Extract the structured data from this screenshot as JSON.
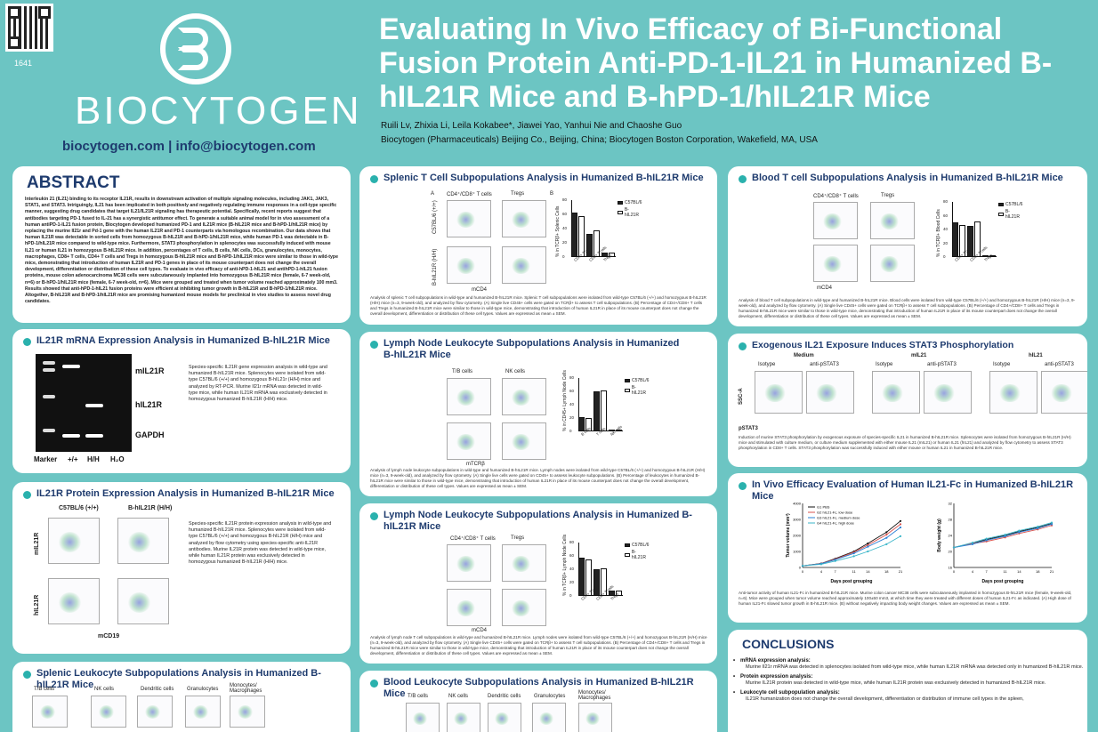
{
  "header": {
    "poster_id": "1641",
    "logo_text": "BIOCYTOGEN",
    "contact": "biocytogen.com  |  info@biocytogen.com",
    "title": "Evaluating In Vivo Efficacy of Bi-Functional Fusion Protein Anti-PD-1-IL21 in Humanized B-hIL21R Mice and B-hPD-1/hIL21R Mice",
    "authors": "Ruili Lv, Zhixia Li, Leila Kokabee*, Jiawei Yao, Yanhui Nie and Chaoshe Guo",
    "affiliation": "Biocytogen (Pharmaceuticals) Beijing Co., Beijing, China; Biocytogen Boston Corporation, Wakefield, MA, USA"
  },
  "abstract": {
    "title": "ABSTRACT",
    "text": "Interleukin 21 (IL21) binding to its receptor IL21R, results in downstream activation of multiple signaling molecules, including JAK1, JAK3, STAT1, and STAT3. Intriguingly, IL21 has been implicated in both positively and negatively regulating immune responses in a cell-type specific manner, suggesting drug candidates that target IL21/IL21R signaling has therapeutic potential. Specifically, recent reports suggest that antibodies targeting PD-1 fused to IL-21 has a synergistic antitumor effect. To generate a suitable animal model for in vivo assessment of a human antiPD-1-IL21 fusion protein, Biocytogen developed humanized PD-1 and IL21R mice (B-hIL21R mice and B-hPD-1/hIL21R mice) by replacing the murine Il21r and Pd-1 gene with the human IL21R and PD-1 counterparts via homologous recombination. Our data shows that human IL21R was detectable in sorted cells from homozygous B-hIL21R and B-hPD-1/hIL21R mice, while human PD-1 was detectable in B-hPD-1/hIL21R mice compared to wild-type mice. Furthermore, STAT3 phosphorylation in splenocytes was successfully induced with mouse IL21 or human IL21 in homozygous B-hIL21R mice. In addition, percentages of T cells, B cells, NK cells, DCs, granulocytes, monocytes, macrophages, CD8+ T cells, CD4+ T cells and Tregs in homozygous B-hIL21R mice and B-hPD-1/hIL21R mice were similar to those in wild-type mice, demonstrating that introduction of human IL21R and PD-1 genes in place of its mouse counterpart does not change the overall development, differentiation or distribution of these cell types. To evaluate in vivo efficacy of anti-hPD-1-hIL21 and antihPD-1-hIL21 fusion proteins, mouse colon adenocarcinoma MC38 cells were subcutaneously implanted into homozygous B-hIL21R mice (female, 6-7 week-old, n=6) or B-hPD-1/hIL21R mice (female, 6-7 week-old, n=6). Mice were grouped and treated when tumor volume reached approximately 100 mm3. Results showed that anti-hPD-1-hIL21 fusion proteins were efficient at inhibiting tumor growth in B-hIL21R and B-hPD-1/hIL21R mice. Altogether, B-hIL21R and B-hPD-1/hIL21R mice are promising humanized mouse models for preclinical in vivo studies to assess novel drug candidates."
  },
  "mrna": {
    "title": "IL21R mRNA Expression Analysis in Humanized B-hIL21R Mice",
    "gel_labels": [
      "mIL21R",
      "hIL21R",
      "GAPDH"
    ],
    "lane_labels": [
      "Marker",
      "+/+",
      "H/H",
      "H₂O"
    ],
    "text": "Species-specific IL21R gene expression analysis in wild-type and humanized B-hIL21R mice. Splenocytes were isolated from wild-type C57BL/6 (+/+) and homozygous B-hIL21r (H/H) mice and analyzed by RT-PCR. Murine Il21r mRNA was detected in wild-type mice, while human IL21R mRNA was exclusively detected in homozygous humanized B-hIL21R (H/H) mice."
  },
  "protein": {
    "title": "IL21R Protein Expression Analysis in Humanized B-hIL21R Mice",
    "col_labels": [
      "C57BL/6 (+/+)",
      "B-hIL21R (H/H)"
    ],
    "row_labels": [
      "mIL21R",
      "hIL21R"
    ],
    "x_label": "mCD19",
    "text": "Species-specific IL21R protein expression analysis in wild-type and humanized B-hIL21R mice. Splenocytes were isolated from wild-type C57BL/6 (+/+) and homozygous B-hIL21R (H/H) mice and analyzed by flow cytometry using species-specific anti-IL21R antibodies. Murine IL21R protein was detected in wild-type mice, while human IL21R protein was exclusively detected in homozygous humanized B-hIL21R (H/H) mice."
  },
  "splenic_leuko": {
    "title": "Splenic Leukocyte Subpopulations Analysis in Humanized B-hIL21R Mice",
    "gate_labels": [
      "T/B cells",
      "NK cells",
      "Dendritic cells",
      "Granulocytes",
      "Monocytes/ Macrophages"
    ]
  },
  "splenic_t": {
    "title": "Splenic T Cell Subpopulations Analysis in Humanized B-hIL21R Mice",
    "gate_labels": [
      "CD4⁺/CD8⁺ T cells",
      "Tregs"
    ],
    "row_labels": [
      "C57BL/6 (+/+)",
      "B-hIL21R (H/H)"
    ],
    "panel_a": "A",
    "panel_b": "B",
    "x_label": "mCD4",
    "caption": "Analysis of splenic T cell subpopulations in wild-type and humanized B-hIL21R mice. Splenic T cell subpopulations were isolated from wild-type C57BL/6 (+/+) and homozygous B-hIL21R (H/H) mice (n=3, 9-week-old), and analyzed by flow cytometry. (A) Single live CD45+ cells were gated on TCRβ+ to assess T cell subpopulations. (B) Percentage of CD4+/CD8+ T cells and Tregs in humanized B-hIL21R mice were similar to those in wild-type mice, demonstrating that introduction of human IL21R in place of its mouse counterpart does not change the overall development, differentiation or distribution of these cell types. Values are expressed as mean ± SEM."
  },
  "lymph_leuko": {
    "title": "Lymph Node Leukocyte Subpopulations Analysis in Humanized B-hIL21R Mice",
    "gate_labels": [
      "T/B cells",
      "NK cells"
    ],
    "x_label": "mTCRβ",
    "caption": "Analysis of lymph node leukocyte subpopulations in wild-type and humanized B-hIL21R mice. Lymph nodes were isolated from wild-type C57BL/6 (+/+) and homozygous B-hIL21R (H/H) mice (n=3, 9-week-old), and analyzed by flow cytometry. (A) Single live cells were gated on CD45+ to assess leukocyte subpopulations. (B) Percentage of leukocytes in humanized B-hIL21R mice were similar to those in wild-type mice, demonstrating that introduction of human IL21R in place of its mouse counterpart does not change the overall development, differentiation or distribution of these cell types. Values are expressed as mean ± SEM."
  },
  "lymph_t": {
    "title": "Lymph Node Leukocyte Subpopulations Analysis in Humanized B-hIL21R Mice",
    "gate_labels": [
      "CD4⁺/CD8⁺ T cells",
      "Tregs"
    ],
    "x_label": "mCD4",
    "caption": "Analysis of lymph node T cell subpopulations in wild-type and humanized B-hIL21R mice. Lymph nodes were isolated from wild-type C57BL/6 (+/+) and homozygous B-hIL21R (H/H) mice (n=3, 9-week-old), and analyzed by flow cytometry. (A) Single live CD45+ cells were gated on TCRβ+ to assess T cell subpopulations. (B) Percentage of CD4+/CD8+ T cells and Tregs in humanized B-hIL21R mice were similar to those in wild-type mice, demonstrating that introduction of human IL21R in place of its mouse counterpart does not change the overall development, differentiation or distribution of these cell types. Values are expressed as mean ± SEM."
  },
  "blood_leuko": {
    "title": "Blood Leukocyte Subpopulations Analysis in Humanized B-hIL21R Mice",
    "gate_labels": [
      "T/B cells",
      "NK cells",
      "Dendritic cells",
      "Granulocytes",
      "Monocytes/ Macrophages"
    ]
  },
  "blood_t": {
    "title": "Blood T cell Subpopulations Analysis in Humanized B-hIL21R Mice",
    "gate_labels": [
      "CD4⁺/CD8⁺ T cells",
      "Tregs"
    ],
    "x_label": "mCD4",
    "caption": "Analysis of blood T cell subpopulations in wild-type and humanized B-hIL21R mice. Blood cells were isolated from wild-type C57BL/6 (+/+) and homozygous B-hIL21R (H/H) mice (n=3, 9-week-old), and analyzed by flow cytometry. (A) Single live CD45+ cells were gated on TCRβ+ to assess T cell subpopulations. (B) Percentage of CD4+/CD8+ T cells and Tregs in humanized B-hIL21R mice were similar to those in wild-type mice, demonstrating that introduction of human IL21R in place of its mouse counterpart does not change the overall development, differentiation or distribution of these cell types. Values are expressed as mean ± SEM."
  },
  "stat3": {
    "title": "Exogenous IL21 Exposure Induces STAT3 Phosphorylation",
    "groups": [
      "Medium",
      "mIL21",
      "hIL21"
    ],
    "sub_labels": [
      "Isotype",
      "anti-pSTAT3",
      "Isotype",
      "anti-pSTAT3",
      "Isotype",
      "anti-pSTAT3"
    ],
    "y_label": "SSC-A",
    "x_label": "pSTAT3",
    "caption": "Induction of murine STAT3 phosphorylation by exogenous exposure of species-specific IL21 in humanized B-hIL21R mice. Splenocytes were isolated from homozygous B-hIL21R (H/H) mice and stimulated with culture medium, or culture medium supplemented with either mouse IL21 (mIL21) or human IL21 (hIL21) and analyzed by flow cytometry to assess STAT3 phosphorylation in CD8+ T cells. STAT3 phosphorylation was successfully induced with either mouse or human IL21 in humanized B-hIL21R mice."
  },
  "efficacy": {
    "title": "In Vivo Efficacy Evaluation of Human IL21-Fc in Humanized B-hIL21R Mice",
    "caption": "Anti-tumor activity of human IL21-Fc in humanized B-hIL21R mice. Murine colon cancer MC38 cells were subcutaneously implanted in homozygous B-hIL21R mice (female, 9-week-old, n=6). Mice were grouped when tumor volume reached approximately 100±50 mm3, at which time they were treated with different doses of human IL21-Fc as indicated. (A) High dose of human IL21-Fc slowed tumor growth in B-hIL21R mice. (B) without negatively impacting body weight changes. Values are expressed as mean ± SEM."
  },
  "conclusions": {
    "title": "CONCLUSIONS",
    "items": [
      {
        "head": "mRNA expression analysis:",
        "text": "Murine Il21r mRNA was detected in splenocytes isolated from wild-type mice, while human IL21R mRNA was detected only in humanized B-hIL21R mice."
      },
      {
        "head": "Protein expression analysis:",
        "text": "Murine IL21R protein was detected in wild-type mice, while human IL21R protein was exclusively detected in humanized B-hIL21R mice."
      },
      {
        "head": "Leukocyte cell subpopulation analysis:",
        "text": "IL21R humanization does not change the overall development, differentiation or distribution of immune cell types in the spleen,"
      }
    ]
  },
  "chart_data": [
    {
      "type": "bar",
      "panel": "splenic_t",
      "ylabel": "% in TCRβ+ Splenic Cells",
      "categories": [
        "CD4+ T cells",
        "CD8+ T cells",
        "Tregs"
      ],
      "ylim": [
        0,
        80
      ],
      "yticks": [
        "0",
        "20",
        "40",
        "60",
        "80"
      ],
      "series": [
        {
          "name": "C57BL/6",
          "values": [
            62,
            33,
            6
          ]
        },
        {
          "name": "B-hIL21R",
          "values": [
            58,
            37,
            6
          ]
        }
      ]
    },
    {
      "type": "bar",
      "panel": "lymph_leuko",
      "ylabel": "% in CD45+ Lymph Node Cells",
      "categories": [
        "B cells",
        "T cells",
        "NK cells"
      ],
      "ylim": [
        0,
        80
      ],
      "yticks": [
        "0",
        "20",
        "40",
        "60",
        "80"
      ],
      "series": [
        {
          "name": "C57BL/6",
          "values": [
            22,
            60,
            1
          ]
        },
        {
          "name": "B-hIL21R",
          "values": [
            20,
            62,
            1
          ]
        }
      ]
    },
    {
      "type": "bar",
      "panel": "lymph_t",
      "ylabel": "% in TCRβ+ Lymph Node Cells",
      "categories": [
        "CD4+ T cells",
        "CD8+ T cells",
        "Tregs"
      ],
      "ylim": [
        0,
        80
      ],
      "yticks": [
        "0",
        "20",
        "40",
        "60",
        "80"
      ],
      "series": [
        {
          "name": "C57BL/6",
          "values": [
            57,
            40,
            8
          ]
        },
        {
          "name": "B-hIL21R",
          "values": [
            55,
            42,
            8
          ]
        }
      ]
    },
    {
      "type": "bar",
      "panel": "blood_t",
      "ylabel": "% in TCRβ+ Blood Cells",
      "categories": [
        "CD4+ T cells",
        "CD8+ T cells",
        "Tregs"
      ],
      "ylim": [
        0,
        80
      ],
      "yticks": [
        "0",
        "20",
        "40",
        "60",
        "80"
      ],
      "series": [
        {
          "name": "C57BL/6",
          "values": [
            50,
            45,
            2
          ]
        },
        {
          "name": "B-hIL21R",
          "values": [
            46,
            52,
            2
          ]
        }
      ]
    },
    {
      "type": "line",
      "panel": "efficacy_tumor",
      "xlabel": "Days post grouping",
      "ylabel": "Tumor volume (mm³)",
      "x": [
        0,
        4,
        7,
        11,
        14,
        18,
        21
      ],
      "xticks": [
        "0",
        "4",
        "7",
        "11",
        "14",
        "18",
        "21"
      ],
      "ylim": [
        0,
        4000
      ],
      "yticks": [
        "0",
        "1000",
        "2000",
        "3000",
        "4000"
      ],
      "series": [
        {
          "name": "G1 PBS",
          "values": [
            100,
            250,
            550,
            1000,
            1500,
            2200,
            2900
          ],
          "color": "#111111"
        },
        {
          "name": "G2 hIL21-Fc, low dose",
          "values": [
            100,
            240,
            520,
            950,
            1400,
            2050,
            2700
          ],
          "color": "#d9534f"
        },
        {
          "name": "G3 hIL21-Fc, medium dose",
          "values": [
            100,
            230,
            480,
            880,
            1300,
            1850,
            2500
          ],
          "color": "#2a7fd6"
        },
        {
          "name": "G4 hIL21-Fc, high dose",
          "values": [
            100,
            200,
            400,
            700,
            1000,
            1450,
            1950
          ],
          "color": "#3bb6c9"
        }
      ]
    },
    {
      "type": "line",
      "panel": "efficacy_weight",
      "xlabel": "Days post grouping",
      "ylabel": "Body weight (g)",
      "x": [
        0,
        4,
        7,
        11,
        14,
        18,
        21
      ],
      "xticks": [
        "0",
        "4",
        "7",
        "11",
        "14",
        "18",
        "21"
      ],
      "ylim": [
        16,
        32
      ],
      "yticks": [
        "16",
        "20",
        "24",
        "28",
        "32"
      ],
      "series": [
        {
          "name": "G1",
          "values": [
            21,
            22,
            23,
            24,
            25,
            26,
            27
          ],
          "color": "#111111"
        },
        {
          "name": "G2",
          "values": [
            21,
            22,
            22.5,
            23.5,
            24.5,
            25.5,
            26.5
          ],
          "color": "#d9534f"
        },
        {
          "name": "G3",
          "values": [
            21,
            21.8,
            22.8,
            23.8,
            24.8,
            25.8,
            26.8
          ],
          "color": "#2a7fd6"
        },
        {
          "name": "G4",
          "values": [
            21,
            22.2,
            23.2,
            24.2,
            25.2,
            26.2,
            27.2
          ],
          "color": "#3bb6c9"
        }
      ]
    }
  ]
}
